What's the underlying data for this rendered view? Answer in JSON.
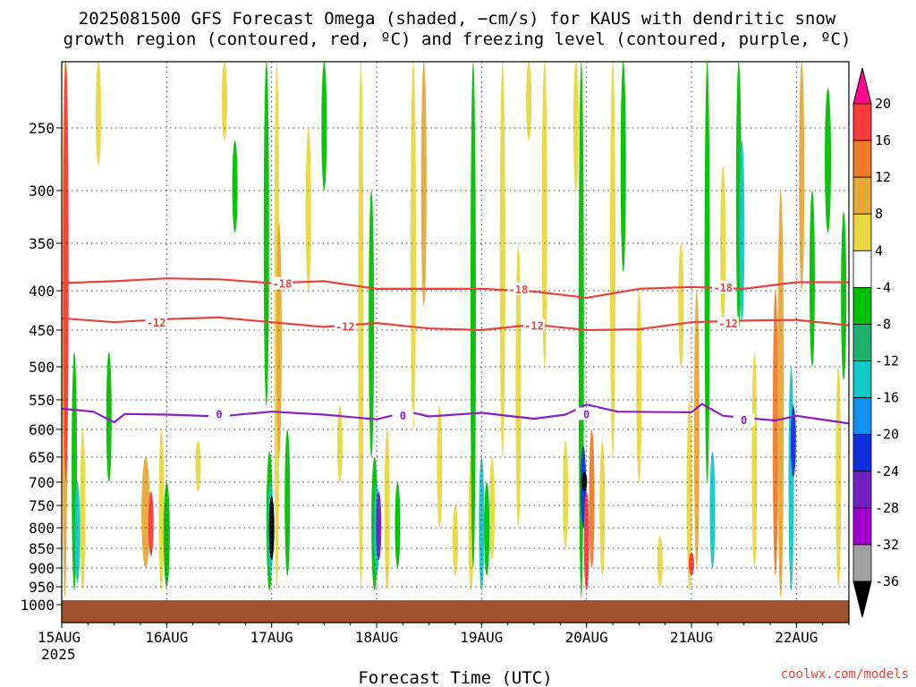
{
  "chart_data": {
    "type": "heatmap",
    "title": "2025081500 GFS Forecast Omega (shaded, −cm/s) for KAUS with dendritic snow",
    "subtitle": "growth region (contoured, red, ºC) and freezing level (contoured, purple, ºC)",
    "xlabel": "Forecast Time (UTC)",
    "ylabel": "",
    "x_ticks": [
      "15AUG",
      "16AUG",
      "17AUG",
      "18AUG",
      "19AUG",
      "20AUG",
      "21AUG",
      "22AUG"
    ],
    "x_year": "2025",
    "y_ticks": [
      250,
      300,
      350,
      400,
      450,
      500,
      550,
      600,
      650,
      700,
      750,
      800,
      850,
      900,
      950,
      1000
    ],
    "y_range_hpa": [
      200,
      1010
    ],
    "x_range_days": [
      0,
      7.5
    ],
    "colorbar": {
      "ticks": [
        20,
        16,
        12,
        8,
        4,
        -4,
        -8,
        -12,
        -16,
        -20,
        -24,
        -28,
        -32,
        -36
      ],
      "colors": [
        "#ff0a8c",
        "#ff3a3a",
        "#f07a28",
        "#e8a838",
        "#e8d840",
        "#ffffff",
        "#00c000",
        "#1fb070",
        "#10c8c8",
        "#1090f0",
        "#1030e0",
        "#7020c0",
        "#a000d0",
        "#a0a0a0",
        "#000000"
      ]
    },
    "contours": [
      {
        "level": "-18",
        "color": "#e8433a",
        "points": [
          [
            0,
            392
          ],
          [
            0.5,
            390
          ],
          [
            1,
            387
          ],
          [
            1.5,
            388
          ],
          [
            2,
            392
          ],
          [
            2.5,
            390
          ],
          [
            3,
            398
          ],
          [
            3.5,
            398
          ],
          [
            4,
            398
          ],
          [
            4.5,
            401
          ],
          [
            5,
            409
          ],
          [
            5.5,
            398
          ],
          [
            6,
            396
          ],
          [
            6.5,
            398
          ],
          [
            7,
            391
          ],
          [
            7.5,
            391
          ]
        ],
        "labels": [
          [
            2.1,
            393
          ],
          [
            4.35,
            399
          ],
          [
            6.3,
            397
          ]
        ]
      },
      {
        "level": "-12",
        "color": "#e8433a",
        "points": [
          [
            0,
            435
          ],
          [
            0.5,
            440
          ],
          [
            1,
            436
          ],
          [
            1.5,
            434
          ],
          [
            2,
            440
          ],
          [
            2.5,
            446
          ],
          [
            3,
            441
          ],
          [
            3.5,
            448
          ],
          [
            4,
            450
          ],
          [
            4.5,
            443
          ],
          [
            5,
            450
          ],
          [
            5.5,
            449
          ],
          [
            6,
            440
          ],
          [
            6.5,
            438
          ],
          [
            7,
            437
          ],
          [
            7.5,
            444
          ]
        ],
        "labels": [
          [
            0.9,
            441
          ],
          [
            2.7,
            446
          ],
          [
            4.5,
            445
          ],
          [
            6.35,
            442
          ]
        ]
      },
      {
        "level": "0",
        "color": "#8a1fc4",
        "points": [
          [
            0,
            565
          ],
          [
            0.3,
            570
          ],
          [
            0.5,
            588
          ],
          [
            0.6,
            574
          ],
          [
            1,
            575
          ],
          [
            1.5,
            578
          ],
          [
            2,
            570
          ],
          [
            2.5,
            575
          ],
          [
            3,
            583
          ],
          [
            3.3,
            570
          ],
          [
            3.5,
            578
          ],
          [
            4,
            572
          ],
          [
            4.5,
            582
          ],
          [
            4.8,
            575
          ],
          [
            5,
            558
          ],
          [
            5.3,
            570
          ],
          [
            6,
            571
          ],
          [
            6.1,
            557
          ],
          [
            6.3,
            577
          ],
          [
            6.8,
            585
          ],
          [
            7,
            577
          ],
          [
            7.5,
            590
          ]
        ],
        "labels": [
          [
            1.5,
            575
          ],
          [
            3.25,
            577
          ],
          [
            5.0,
            575
          ],
          [
            6.5,
            585
          ]
        ]
      }
    ],
    "ground_pressure_hpa": 1000
  },
  "credit": "coolwx.com/models"
}
